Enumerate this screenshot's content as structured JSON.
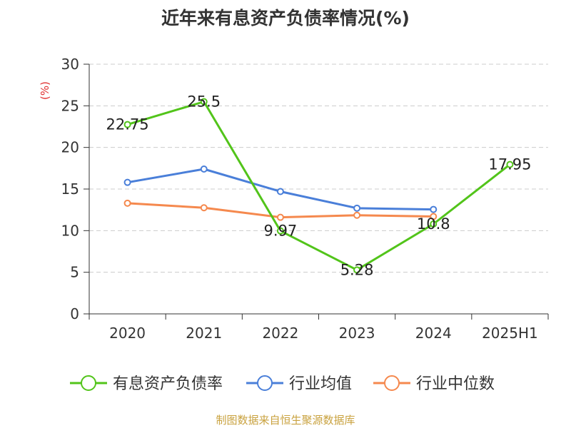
{
  "title": "近年来有息资产负债率情况(%)",
  "source": "制图数据来自恒生聚源数据库",
  "colors": {
    "grid": "#cccccc",
    "axis": "#333333",
    "unit": "#e03030",
    "source": "#c9a23f"
  },
  "chart_data": {
    "type": "line",
    "categories": [
      "2020",
      "2021",
      "2022",
      "2023",
      "2024",
      "2025H1"
    ],
    "ylabel": "(%)",
    "ylim": [
      0,
      30
    ],
    "yticks": [
      0,
      5,
      10,
      15,
      20,
      25,
      30
    ],
    "grid": true,
    "legend_position": "bottom",
    "series": [
      {
        "name": "有息资产负债率",
        "color": "#52c41a",
        "values": [
          22.75,
          25.5,
          9.97,
          5.28,
          10.8,
          17.95
        ],
        "labels": [
          "22.75",
          "25.5",
          "9.97",
          "5.28",
          "10.8",
          "17.95"
        ]
      },
      {
        "name": "行业均值",
        "color": "#4a7fd9",
        "values": [
          15.8,
          17.4,
          14.7,
          12.7,
          12.55,
          null
        ]
      },
      {
        "name": "行业中位数",
        "color": "#f5894e",
        "values": [
          13.3,
          12.75,
          11.6,
          11.85,
          11.7,
          null
        ]
      }
    ]
  }
}
